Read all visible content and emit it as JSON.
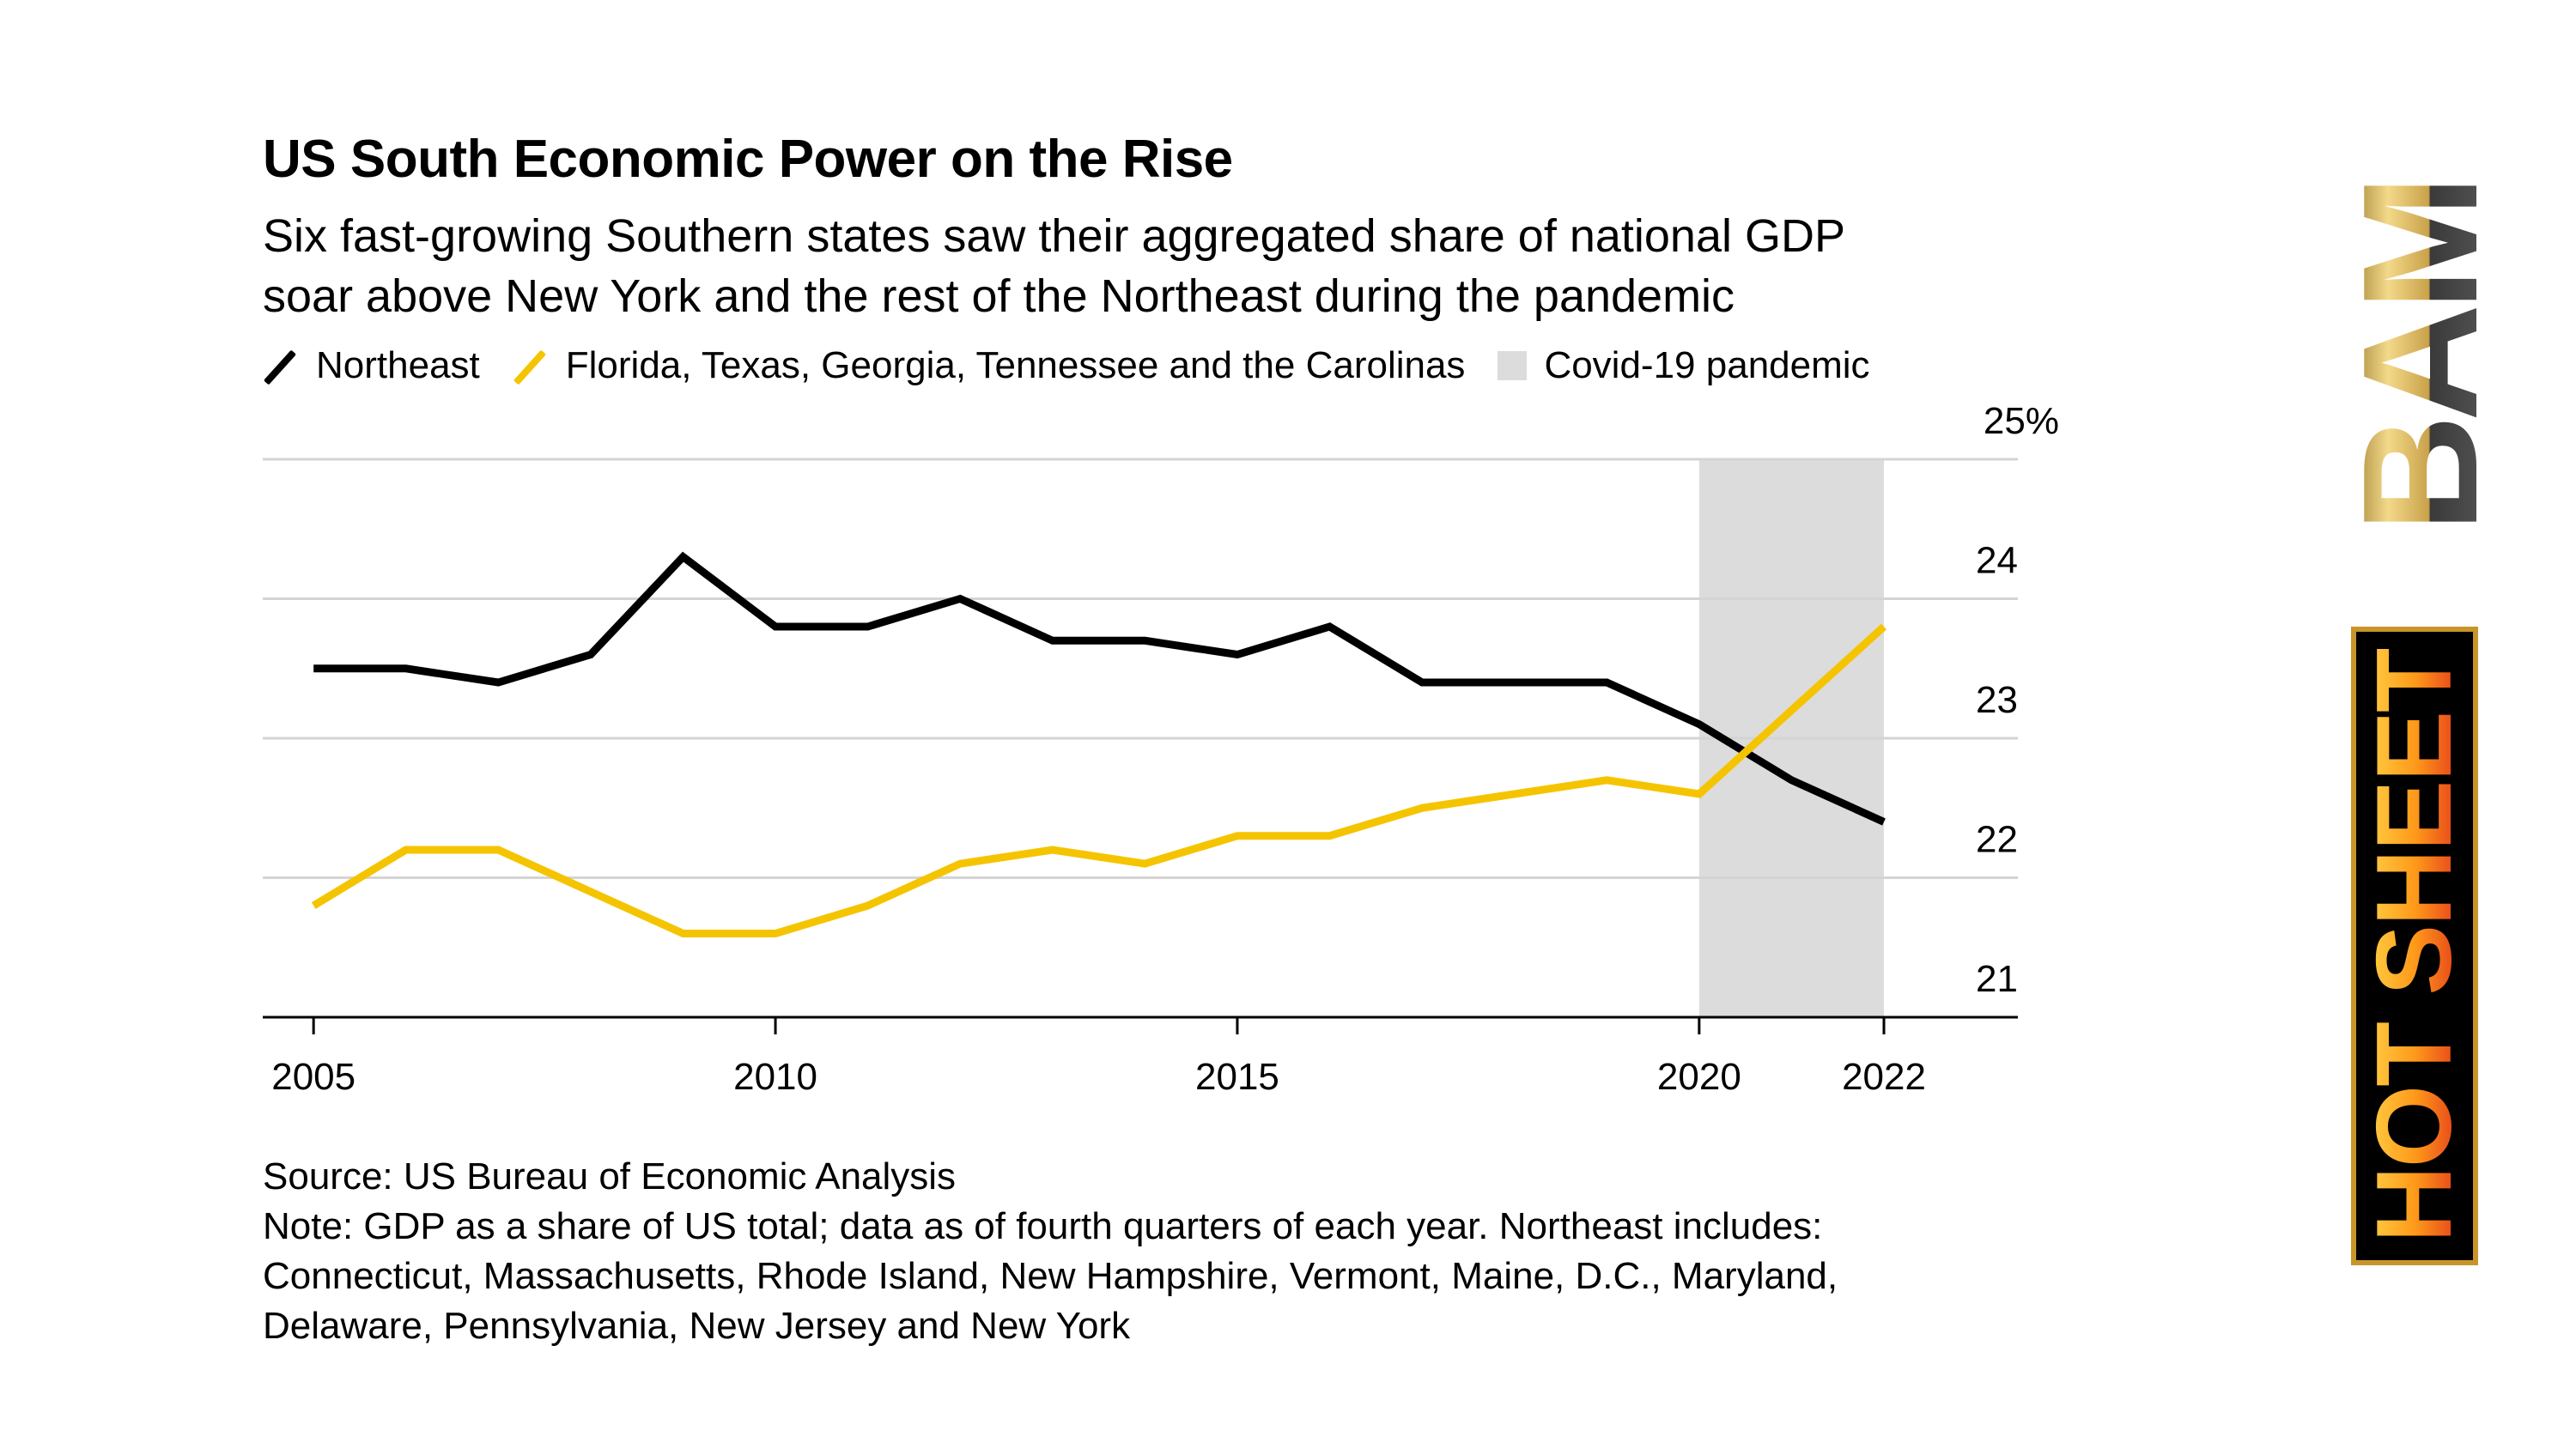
{
  "title": "US South Economic Power on the Rise",
  "subtitle_lines": [
    "Six fast-growing Southern states saw their aggregated share of national GDP",
    "soar above New York and the rest of the Northeast during the pandemic"
  ],
  "legend": {
    "northeast": "Northeast",
    "south": "Florida, Texas, Georgia, Tennessee and the Carolinas",
    "pandemic": "Covid-19 pandemic"
  },
  "footnotes": {
    "source": "Source: US Bureau of Economic Analysis",
    "note_lines": [
      "Note: GDP as a share of US total; data as of fourth quarters of each year. Northeast includes:",
      "Connecticut, Massachusetts, Rhode Island, New Hampshire, Vermont, Maine, D.C., Maryland,",
      "Delaware, Pennsylvania, New Jersey and New York"
    ]
  },
  "logos": {
    "bam": "BAM",
    "hot_sheet": "HOT SHEET"
  },
  "colors": {
    "northeast": "#000000",
    "south": "#f5c400",
    "pandemic_band": "#dcdcdc",
    "grid": "#d4d4d4",
    "axis": "#000000"
  },
  "chart_data": {
    "type": "line",
    "x": [
      2005,
      2006,
      2007,
      2008,
      2009,
      2010,
      2011,
      2012,
      2013,
      2014,
      2015,
      2016,
      2017,
      2018,
      2019,
      2020,
      2021,
      2022
    ],
    "series": [
      {
        "name": "Northeast",
        "values": [
          23.5,
          23.5,
          23.4,
          23.6,
          24.3,
          23.8,
          23.8,
          24.0,
          23.7,
          23.7,
          23.6,
          23.8,
          23.4,
          23.4,
          23.4,
          23.1,
          22.7,
          22.4
        ]
      },
      {
        "name": "Florida, Texas, Georgia, Tennessee and the Carolinas",
        "values": [
          21.8,
          22.2,
          22.2,
          21.9,
          21.6,
          21.6,
          21.8,
          22.1,
          22.2,
          22.1,
          22.3,
          22.3,
          22.5,
          22.6,
          22.7,
          22.6,
          23.2,
          23.8
        ]
      }
    ],
    "shaded_region": {
      "label": "Covid-19 pandemic",
      "x_start": 2020,
      "x_end": 2022
    },
    "xlim": [
      2004.45,
      2023.45
    ],
    "ylim": [
      21,
      25
    ],
    "x_ticks": [
      2005,
      2010,
      2015,
      2020,
      2022
    ],
    "x_tick_labels": [
      "2005",
      "2010",
      "2015",
      "2020",
      "2022"
    ],
    "y_ticks": [
      21,
      22,
      23,
      24,
      25
    ],
    "y_tick_labels": [
      "21",
      "22",
      "23",
      "24",
      "25%"
    ],
    "grid": true,
    "y_axis_side": "right",
    "legend_position": "top-left"
  }
}
